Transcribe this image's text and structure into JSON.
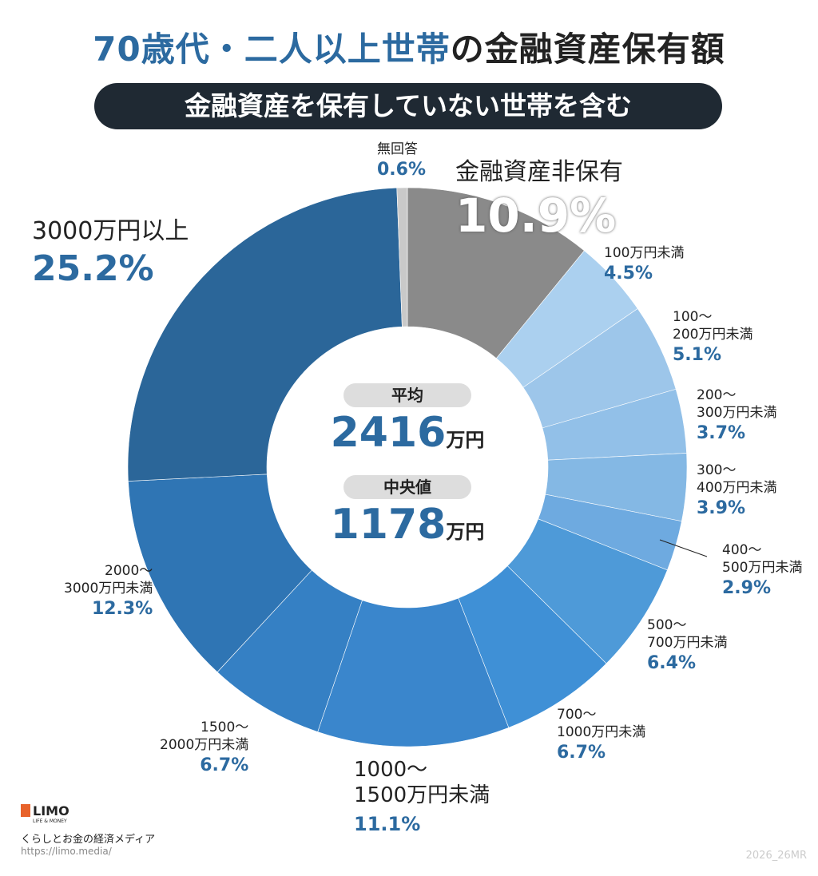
{
  "title": {
    "highlight": "70歳代・二人以上世帯",
    "rest": "の金融資産保有額"
  },
  "subtitle": "金融資産を保有していない世帯を含む",
  "center": {
    "mean_label": "平均",
    "mean_value": "2416",
    "mean_unit": "万円",
    "median_label": "中央値",
    "median_value": "1178",
    "median_unit": "万円"
  },
  "chart_data": {
    "type": "pie",
    "donut": true,
    "start": "top",
    "direction": "clockwise",
    "categories": [
      "金融資産非保有",
      "100万円未満",
      "100〜200万円未満",
      "200〜300万円未満",
      "300〜400万円未満",
      "400〜500万円未満",
      "500〜700万円未満",
      "700〜1000万円未満",
      "1000〜1500万円未満",
      "1500〜2000万円未満",
      "2000〜3000万円未満",
      "3000万円以上",
      "無回答"
    ],
    "values": [
      10.9,
      4.5,
      5.1,
      3.7,
      3.9,
      2.9,
      6.4,
      6.7,
      11.1,
      6.7,
      12.3,
      25.2,
      0.6
    ],
    "value_labels": [
      "10.9%",
      "4.5%",
      "5.1%",
      "3.7%",
      "3.9%",
      "2.9%",
      "6.4%",
      "6.7%",
      "11.1%",
      "6.7%",
      "12.3%",
      "25.2%",
      "0.6%"
    ],
    "label_lines": [
      [
        "金融資産非保有"
      ],
      [
        "100万円未満"
      ],
      [
        "100〜",
        "200万円未満"
      ],
      [
        "200〜",
        "300万円未満"
      ],
      [
        "300〜",
        "400万円未満"
      ],
      [
        "400〜",
        "500万円未満"
      ],
      [
        "500〜",
        "700万円未満"
      ],
      [
        "700〜",
        "1000万円未満"
      ],
      [
        "1000〜",
        "1500万円未満"
      ],
      [
        "1500〜",
        "2000万円未満"
      ],
      [
        "2000〜",
        "3000万円未満"
      ],
      [
        "3000万円以上"
      ],
      [
        "無回答"
      ]
    ],
    "colors": [
      "#8a8a8a",
      "#abd0ef",
      "#9dc6ea",
      "#92c0e8",
      "#84b8e4",
      "#6eaae0",
      "#4e9ad8",
      "#3f90d6",
      "#3a86cc",
      "#3580c4",
      "#2f75b4",
      "#2b6699",
      "#c9c9c9"
    ]
  },
  "logo": {
    "brand": "LIMO",
    "tagline": "LIFE & MONEY",
    "caption": "くらしとお金の経済メディア",
    "url": "https://limo.media/"
  },
  "credit": "2026_26MR"
}
